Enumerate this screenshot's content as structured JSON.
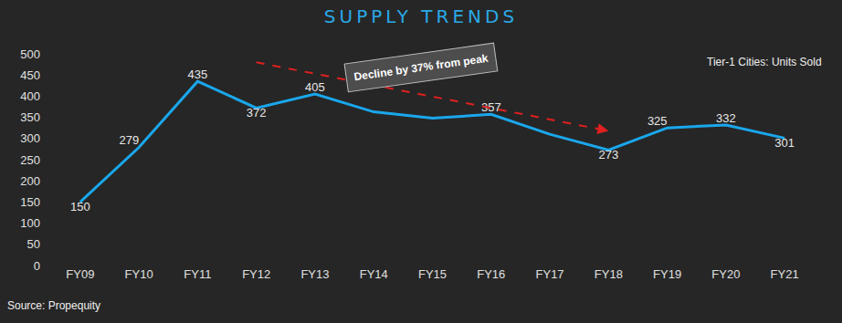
{
  "chart_data": {
    "type": "line",
    "title": "SUPPLY TRENDS",
    "subtitle": "Tier-1 Cities: Units Sold",
    "source": "Source: Propequity",
    "categories": [
      "FY09",
      "FY10",
      "FY11",
      "FY12",
      "FY13",
      "FY14",
      "FY15",
      "FY16",
      "FY17",
      "FY18",
      "FY19",
      "FY20",
      "FY21"
    ],
    "values": [
      150,
      279,
      435,
      372,
      405,
      363,
      348,
      357,
      310,
      273,
      325,
      332,
      301
    ],
    "value_labels": [
      "150",
      "279",
      "435",
      "372",
      "405",
      null,
      null,
      "357",
      null,
      "273",
      "325",
      "332",
      "301"
    ],
    "data_labels": true,
    "color": "#1aa7ec",
    "line_style": "solid",
    "ylim": [
      0,
      500
    ],
    "yticks": [
      0,
      50,
      100,
      150,
      200,
      250,
      300,
      350,
      400,
      450,
      500
    ],
    "grid": false,
    "annotations": [
      {
        "text": "Decline by 37% from peak",
        "from": "FY12",
        "to": "FY18",
        "color": "#e02020",
        "line_style": "dashed"
      }
    ]
  }
}
